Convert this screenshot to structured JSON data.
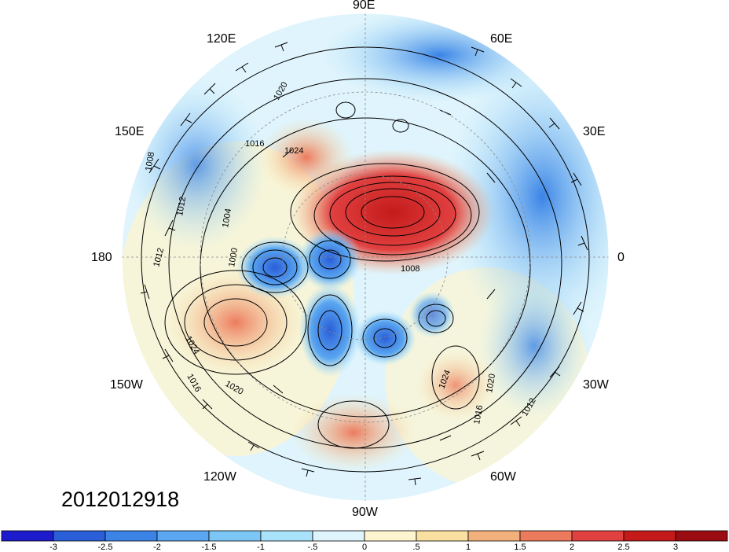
{
  "map": {
    "projection": "north polar stereographic",
    "longitude_labels": [
      "90E",
      "120E",
      "60E",
      "150E",
      "30E",
      "180",
      "0",
      "150W",
      "30W",
      "120W",
      "60W",
      "90W"
    ],
    "timestamp": "2012012918",
    "contour_labels": [
      "1008",
      "1012",
      "1016",
      "1020",
      "1024",
      "1004",
      "1000",
      "1012",
      "1016",
      "1020",
      "1024",
      "1008",
      "1012",
      "1016",
      "1020",
      "1024"
    ]
  },
  "colorbar": {
    "ticks": [
      "-3",
      "-2.5",
      "-2",
      "-1.5",
      "-1",
      "-.5",
      "0",
      ".5",
      "1",
      "1.5",
      "2",
      "2.5",
      "3"
    ],
    "colors": [
      "#1c1ccc",
      "#2a5fd8",
      "#3b84e6",
      "#5aa6f0",
      "#7cc6f6",
      "#a8e2fb",
      "#dff4fc",
      "#fdf5d0",
      "#f9dfa0",
      "#f2b07c",
      "#ec7b5e",
      "#e14040",
      "#c41a1a",
      "#9a0c12"
    ]
  }
}
